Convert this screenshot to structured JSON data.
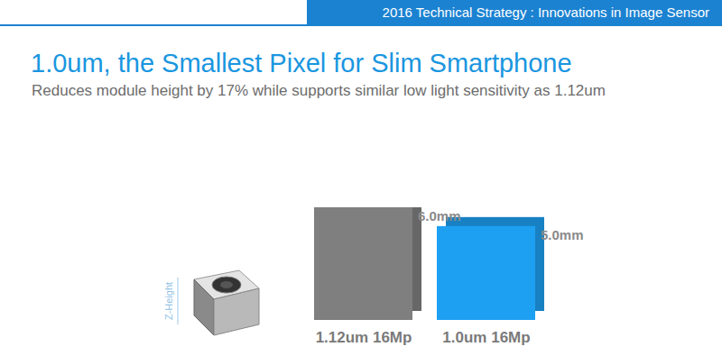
{
  "chart_data": {
    "type": "bar",
    "header": "2016 Technical Strategy : Innovations in Image Sensor",
    "title": "1.0um, the Smallest Pixel for Slim Smartphone",
    "subtitle": "Reduces module height by 17% while supports similar low light sensitivity as 1.12um",
    "annotations": [
      "Z-Height"
    ],
    "categories": [
      "1.12um 16Mp",
      "1.0um 16Mp"
    ],
    "values": [
      6.0,
      5.0
    ],
    "value_labels": [
      "6.0mm",
      "5.0mm"
    ],
    "data_labels": true,
    "colors": [
      "#7f7f7f",
      "#1ea0f2"
    ],
    "ylim": [
      0,
      6
    ],
    "tick_labels": "x",
    "grid": false
  }
}
